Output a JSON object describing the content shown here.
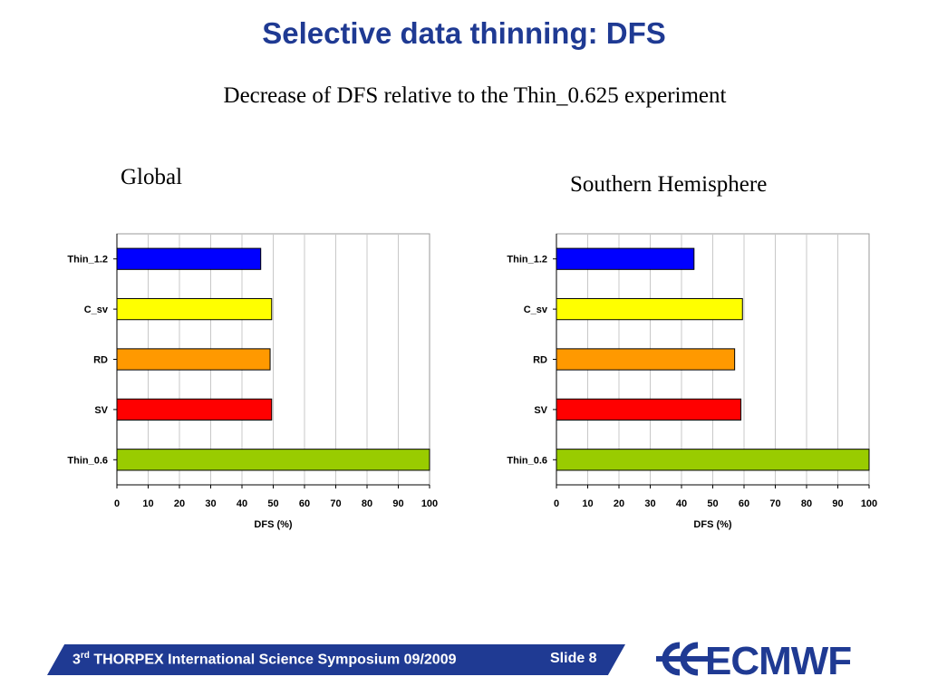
{
  "slide": {
    "title": "Selective data thinning: DFS",
    "subtitle": "Decrease of  DFS relative to the Thin_0.625 experiment"
  },
  "footer": {
    "ordinal": "3",
    "ordinal_suffix": "rd",
    "event": " THORPEX International Science Symposium 09/2009",
    "slide_label": "Slide 8",
    "logo_text": "ECMWF"
  },
  "colors": {
    "title_blue": "#1f3a93",
    "Thin_1.2": "#0000ff",
    "C_sv": "#ffff00",
    "RD": "#ff9900",
    "SV": "#ff0000",
    "Thin_0.6": "#99cc00"
  },
  "chart_data": [
    {
      "type": "bar",
      "orientation": "horizontal",
      "title": "Global",
      "categories": [
        "Thin_1.2",
        "C_sv",
        "RD",
        "SV",
        "Thin_0.6"
      ],
      "values": [
        46,
        49.5,
        49,
        49.5,
        100
      ],
      "xlabel": "DFS (%)",
      "ylabel": "",
      "xlim": [
        0,
        100
      ],
      "xticks": [
        0,
        10,
        20,
        30,
        40,
        50,
        60,
        70,
        80,
        90,
        100
      ],
      "grid": true
    },
    {
      "type": "bar",
      "orientation": "horizontal",
      "title": "Southern Hemisphere",
      "categories": [
        "Thin_1.2",
        "C_sv",
        "RD",
        "SV",
        "Thin_0.6"
      ],
      "values": [
        44,
        59.5,
        57,
        59,
        100
      ],
      "xlabel": "DFS (%)",
      "ylabel": "",
      "xlim": [
        0,
        100
      ],
      "xticks": [
        0,
        10,
        20,
        30,
        40,
        50,
        60,
        70,
        80,
        90,
        100
      ],
      "grid": true
    }
  ]
}
